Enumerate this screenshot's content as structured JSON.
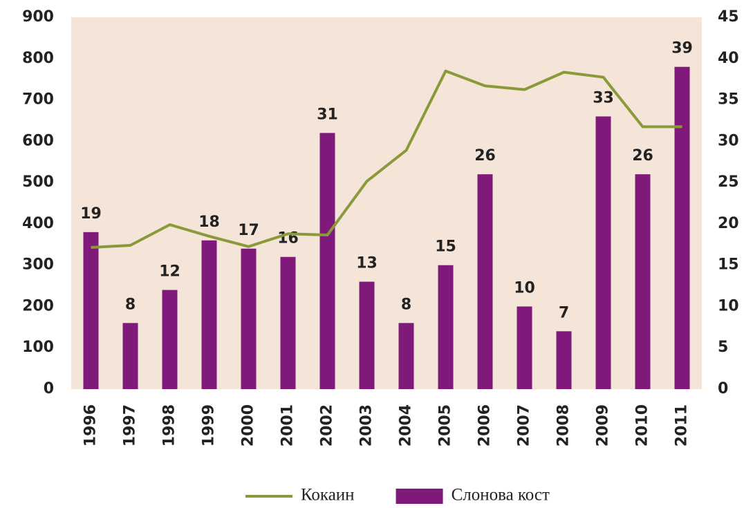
{
  "chart_data": {
    "type": "bar",
    "categories": [
      "1996",
      "1997",
      "1998",
      "1999",
      "2000",
      "2001",
      "2002",
      "2003",
      "2004",
      "2005",
      "2006",
      "2007",
      "2008",
      "2009",
      "2010",
      "2011"
    ],
    "series": [
      {
        "name": "Кокаин",
        "type": "line",
        "color": "#8a9a3a",
        "axis": "y",
        "values": [
          343,
          348,
          398,
          370,
          345,
          376,
          373,
          503,
          578,
          770,
          734,
          725,
          767,
          755,
          635,
          635
        ]
      },
      {
        "name": "Слонова кост",
        "type": "bar",
        "color": "#7f1a7a",
        "axis": "y2",
        "values": [
          19,
          8,
          12,
          18,
          17,
          16,
          31,
          13,
          8,
          15,
          26,
          10,
          7,
          33,
          26,
          39
        ]
      }
    ],
    "ylim": [
      0,
      900
    ],
    "yticks": [
      0,
      100,
      200,
      300,
      400,
      500,
      600,
      700,
      800,
      900
    ],
    "y2lim": [
      0,
      45
    ],
    "y2ticks": [
      0,
      5,
      10,
      15,
      20,
      25,
      30,
      35,
      40,
      45
    ],
    "background": "#f5e4d8",
    "legend": "bottom"
  }
}
